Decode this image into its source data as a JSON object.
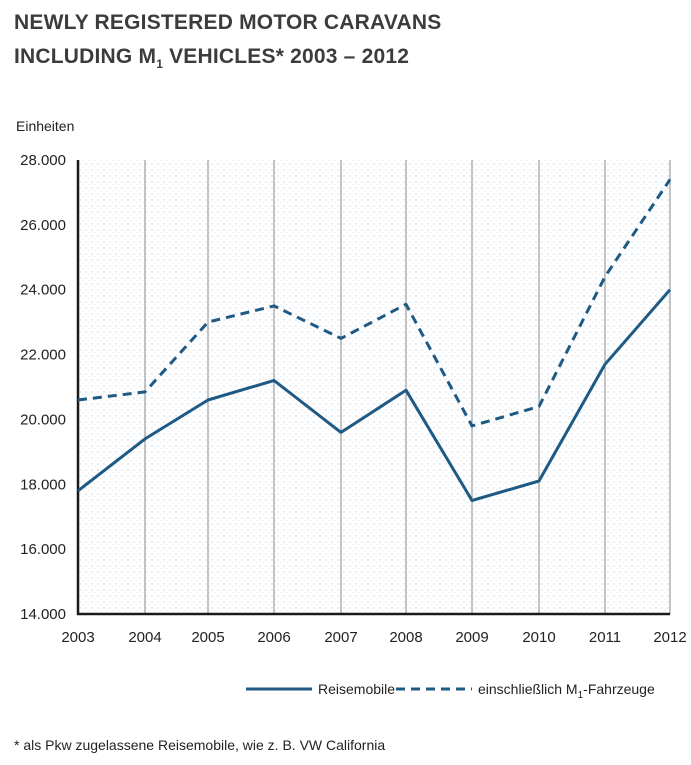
{
  "header": {
    "title_line1": "NEWLY REGISTERED MOTOR CARAVANS",
    "title_line2_pre": "INCLUDING M",
    "title_line2_sub": "1",
    "title_line2_post": " VEHICLES* 2003 – 2012"
  },
  "footnote": "* als Pkw zugelassene Reisemobile, wie z. B. VW California",
  "chart_data": {
    "type": "line",
    "ylabel": "Einheiten",
    "xlabel": "",
    "categories": [
      "2003",
      "2004",
      "2005",
      "2006",
      "2007",
      "2008",
      "2009",
      "2010",
      "2011",
      "2012"
    ],
    "ylim": [
      14000,
      28000
    ],
    "yticks": [
      "14.000",
      "16.000",
      "18.000",
      "20.000",
      "22.000",
      "24.000",
      "26.000",
      "28.000"
    ],
    "grid": "vertical lines at each year",
    "legend_position": "bottom-right",
    "series": [
      {
        "name": "Reisemobile",
        "style": "solid",
        "color": "#1f5a85",
        "values": [
          17800,
          19400,
          20600,
          21200,
          19600,
          20900,
          17500,
          18100,
          21700,
          24000
        ]
      },
      {
        "name": "einschließlich M1-Fahrzeuge",
        "style": "dashed",
        "color": "#1f5a85",
        "values": [
          20600,
          20850,
          23000,
          23500,
          22500,
          23550,
          19800,
          20400,
          24400,
          27400
        ]
      }
    ],
    "legend": [
      {
        "label": "Reisemobile",
        "style": "solid"
      },
      {
        "label_pre": "einschließlich M",
        "label_sub": "1",
        "label_post": "-Fahrzeuge",
        "style": "dashed"
      }
    ]
  }
}
